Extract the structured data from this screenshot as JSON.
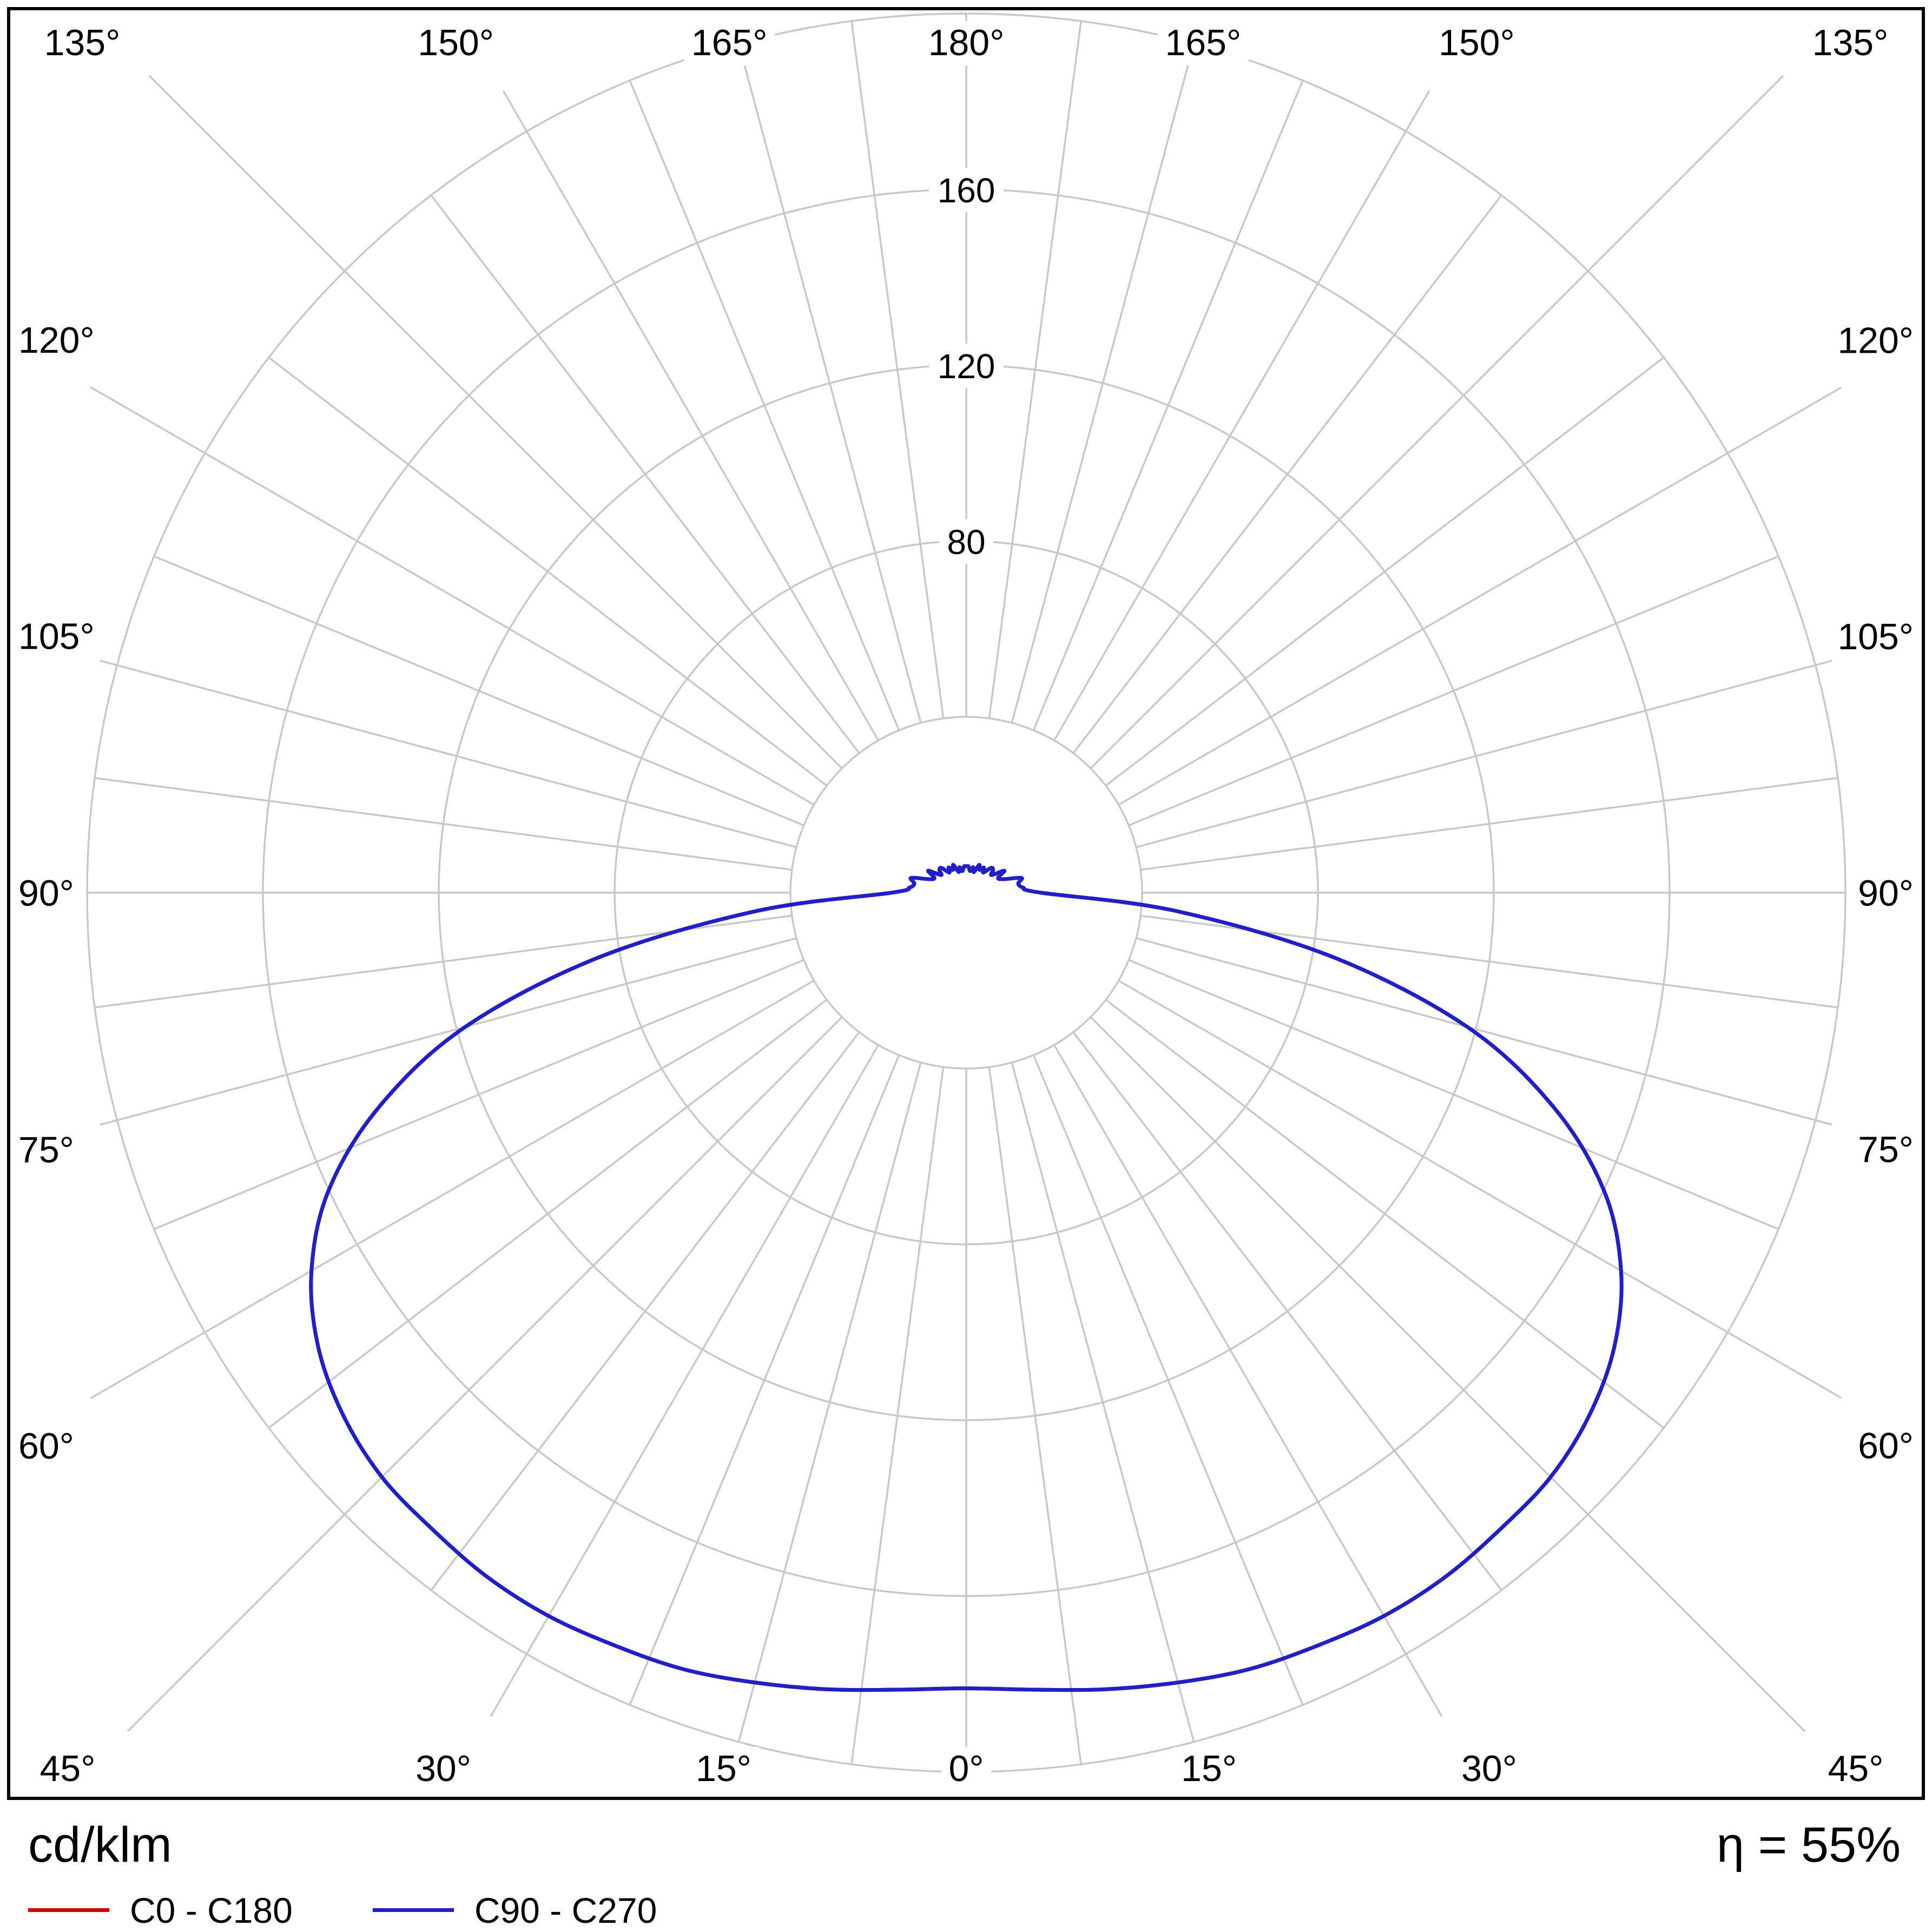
{
  "chart_data": {
    "type": "polar",
    "subtype": "luminous-intensity-distribution",
    "units": "cd/klm",
    "efficiency": "η = 55%",
    "angle_step_labels": 15,
    "angle_step_grid": 7.5,
    "angle_labels": [
      "0°",
      "15°",
      "30°",
      "45°",
      "60°",
      "75°",
      "90°",
      "105°",
      "120°",
      "135°",
      "150°",
      "165°",
      "180°"
    ],
    "radial_ticks": [
      40,
      80,
      120,
      160,
      200
    ],
    "radial_tick_labels": [
      "80",
      "120",
      "160"
    ],
    "radial_max": 200,
    "inner_radius": 40,
    "grid_on": true,
    "grid_color": "#c8c8c8",
    "frame_color": "#000000",
    "background_color": "#ffffff",
    "legend_position": "bottom-left",
    "series": [
      {
        "name": "C0 - C180",
        "color": "#cc0000",
        "gamma": [
          0,
          5,
          10,
          15,
          20,
          25,
          30,
          35,
          40,
          45,
          50,
          55,
          60,
          65,
          70,
          75,
          80,
          85,
          90,
          95,
          100,
          105,
          110,
          115,
          120,
          125,
          130,
          135,
          140,
          145,
          150,
          155,
          160,
          165,
          170,
          175,
          180
        ],
        "values": [
          181,
          182,
          184,
          186,
          188,
          189,
          190,
          190,
          189,
          188,
          185,
          180,
          172,
          160,
          142,
          118,
          85,
          48,
          17,
          13,
          12,
          13,
          9,
          8,
          10,
          7,
          8,
          8,
          6,
          7,
          6,
          7,
          5,
          6,
          5,
          6,
          6
        ]
      },
      {
        "name": "C90 - C270",
        "color": "#2020c8",
        "gamma": [
          0,
          5,
          10,
          15,
          20,
          25,
          30,
          35,
          40,
          45,
          50,
          55,
          60,
          65,
          70,
          75,
          80,
          85,
          90,
          95,
          100,
          105,
          110,
          115,
          120,
          125,
          130,
          135,
          140,
          145,
          150,
          155,
          160,
          165,
          170,
          175,
          180
        ],
        "values": [
          181,
          182,
          184,
          186,
          188,
          189,
          190,
          190,
          189,
          188,
          185,
          180,
          172,
          160,
          142,
          118,
          85,
          48,
          17,
          13,
          12,
          13,
          9,
          8,
          10,
          7,
          8,
          8,
          6,
          7,
          6,
          7,
          5,
          6,
          5,
          6,
          6
        ]
      }
    ],
    "legend": [
      {
        "label": "C0 - C180",
        "color": "#cc0000"
      },
      {
        "label": "C90 - C270",
        "color": "#2020c8"
      }
    ]
  }
}
